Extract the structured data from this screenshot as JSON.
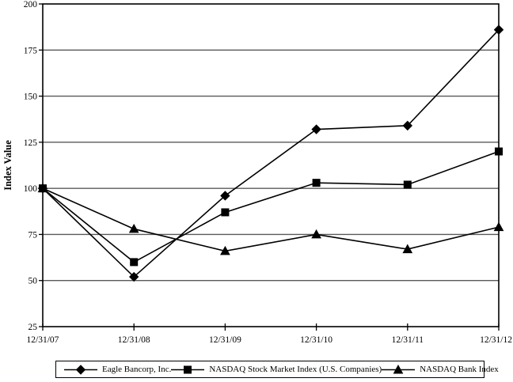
{
  "chart_data": {
    "type": "line",
    "ylabel": "Index Value",
    "ylim": [
      25,
      200
    ],
    "yticks": [
      25,
      50,
      75,
      100,
      125,
      150,
      175,
      200
    ],
    "grid": "horizontal",
    "legend_position": "bottom",
    "x": [
      "12/31/07",
      "12/31/08",
      "12/31/09",
      "12/31/10",
      "12/31/11",
      "12/31/12"
    ],
    "series": [
      {
        "name": "Eagle Bancorp, Inc.",
        "marker": "diamond",
        "values": [
          100,
          52,
          96,
          132,
          134,
          186
        ]
      },
      {
        "name": "NASDAQ Stock Market Index (U.S. Companies)",
        "marker": "square",
        "values": [
          100,
          60,
          87,
          103,
          102,
          120
        ]
      },
      {
        "name": "NASDAQ Bank Index",
        "marker": "triangle",
        "values": [
          100,
          78,
          66,
          75,
          67,
          79
        ]
      }
    ],
    "colors": {
      "series_line": "#000000",
      "marker_fill": "#000000",
      "gridline": "#595959",
      "plot_border": "#000000",
      "text": "#000000",
      "background": "#ffffff"
    }
  }
}
